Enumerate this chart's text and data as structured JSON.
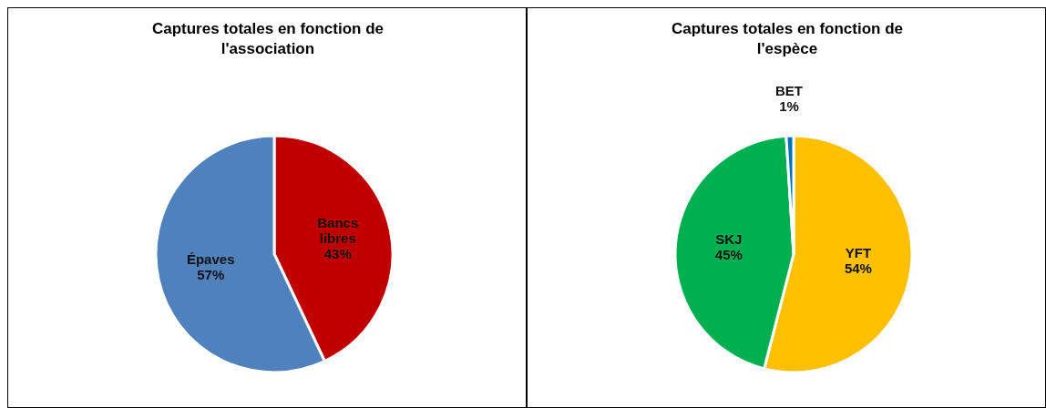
{
  "chart_data": [
    {
      "type": "pie",
      "title": "Captures totales en fonction de l'association",
      "categories": [
        "Bancs libres",
        "Épaves"
      ],
      "values": [
        43,
        57
      ],
      "colors": [
        "#c00000",
        "#4f81bd"
      ],
      "value_labels": [
        "43%",
        "57%"
      ]
    },
    {
      "type": "pie",
      "title": "Captures totales en fonction de l'espèce",
      "categories": [
        "YFT",
        "SKJ",
        "BET"
      ],
      "values": [
        54,
        45,
        1
      ],
      "colors": [
        "#ffc000",
        "#00b050",
        "#0070c0"
      ],
      "value_labels": [
        "54%",
        "45%",
        "1%"
      ]
    }
  ]
}
